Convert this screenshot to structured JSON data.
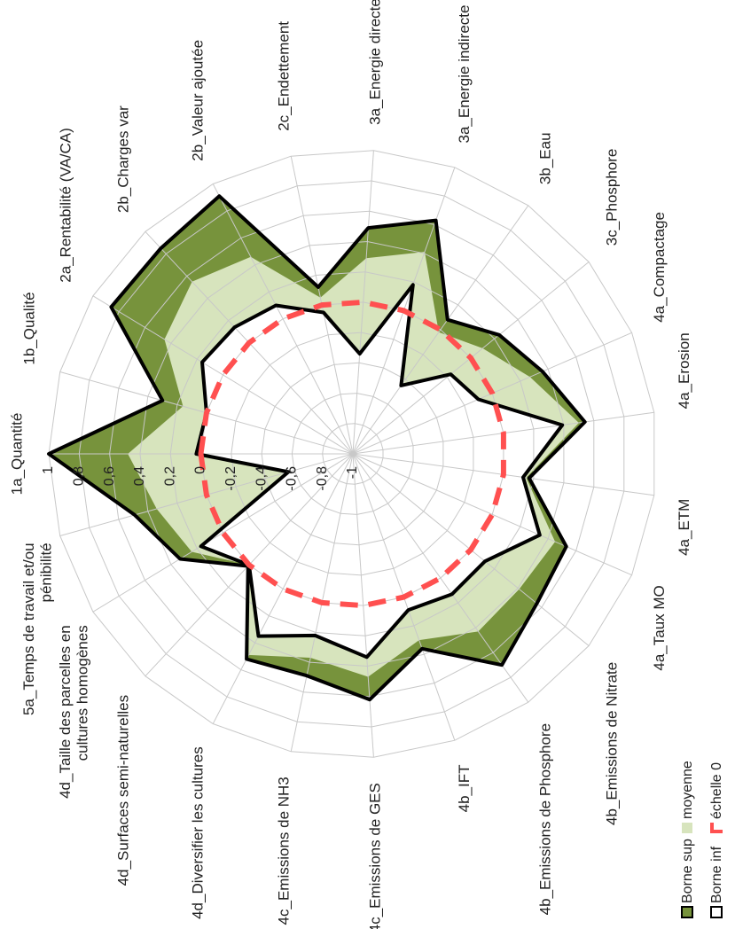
{
  "chart_data": {
    "type": "radar",
    "categories": [
      "1a_Quantité",
      "1b_Qualité",
      "2a_Rentabilité (VA/CA)",
      "2b_Charges var",
      "2b_Valeur ajoutée",
      "2c_Endettement",
      "3a_Energie directe",
      "3a_Energie indirecte",
      "3b_Eau",
      "3c_Phosphore",
      "4a_Compactage",
      "4a_Erosion",
      "4a_ETM",
      "4a_Taux MO",
      "4b_Emissions de Nitrate",
      "4b_Emissions de Phosphore",
      "4b_IFT",
      "4c_Emissions de GES",
      "4c_Emissions de NH3",
      "4d_Diversifier les cultures",
      "4d_Surfaces semi-naturelles",
      "4d_Taille des parcelles en cultures homogènes",
      "5a_Temps de travail et/ou pénibilité"
    ],
    "series": [
      {
        "name": "Borne sup",
        "color": "#77933c",
        "edge": "#000000",
        "values": [
          1,
          0.3,
          0.86,
          0.85,
          0.91,
          0.12,
          0.49,
          0.63,
          0.08,
          0.24,
          0.36,
          0.54,
          0.17,
          0.53,
          0.56,
          0.7,
          0.36,
          0.62,
          0.49,
          0.52,
          0.01,
          0.33,
          0.49
        ]
      },
      {
        "name": "moyenne",
        "color": "#d7e4bd",
        "values": [
          0.48,
          0.16,
          0.45,
          0.55,
          0.46,
          0.05,
          0.29,
          0.41,
          -0.02,
          0.1,
          0.27,
          0.5,
          0.15,
          0.45,
          0.41,
          0.43,
          0.3,
          0.47,
          0.37,
          0.49,
          0,
          0.24,
          0.34
        ]
      },
      {
        "name": "Borne inf",
        "color": "#ffffff",
        "edge": "#000000",
        "values": [
          0.03,
          0,
          0.16,
          0.14,
          0.1,
          -0.05,
          -0.34,
          0.18,
          -0.45,
          -0.17,
          -0.1,
          0.39,
          0.13,
          0.34,
          0.12,
          0.13,
          0.09,
          0.34,
          0.22,
          0.35,
          0,
          0.17,
          -0.56
        ]
      },
      {
        "name": "échelle 0",
        "color": "#ff5050",
        "dashed": true,
        "values": [
          0,
          0,
          0,
          0,
          0,
          0,
          0,
          0,
          0,
          0,
          0,
          0,
          0,
          0,
          0,
          0,
          0,
          0,
          0,
          0,
          0,
          0,
          0
        ]
      }
    ],
    "ylim": [
      -1,
      1
    ],
    "yticks": [
      -1,
      {
        "value": -0.8,
        "label": "-0,8"
      },
      {
        "value": -0.6,
        "label": "-0,6"
      },
      {
        "value": -0.4,
        "label": "-0,4"
      },
      {
        "value": -0.2,
        "label": "-0,2"
      },
      0,
      {
        "value": 0.2,
        "label": "0,2"
      },
      {
        "value": 0.4,
        "label": "0,4"
      },
      {
        "value": 0.6,
        "label": "0,6"
      },
      {
        "value": 0.8,
        "label": "0,8"
      },
      1
    ],
    "grid": true,
    "legend": "bottom-left"
  }
}
